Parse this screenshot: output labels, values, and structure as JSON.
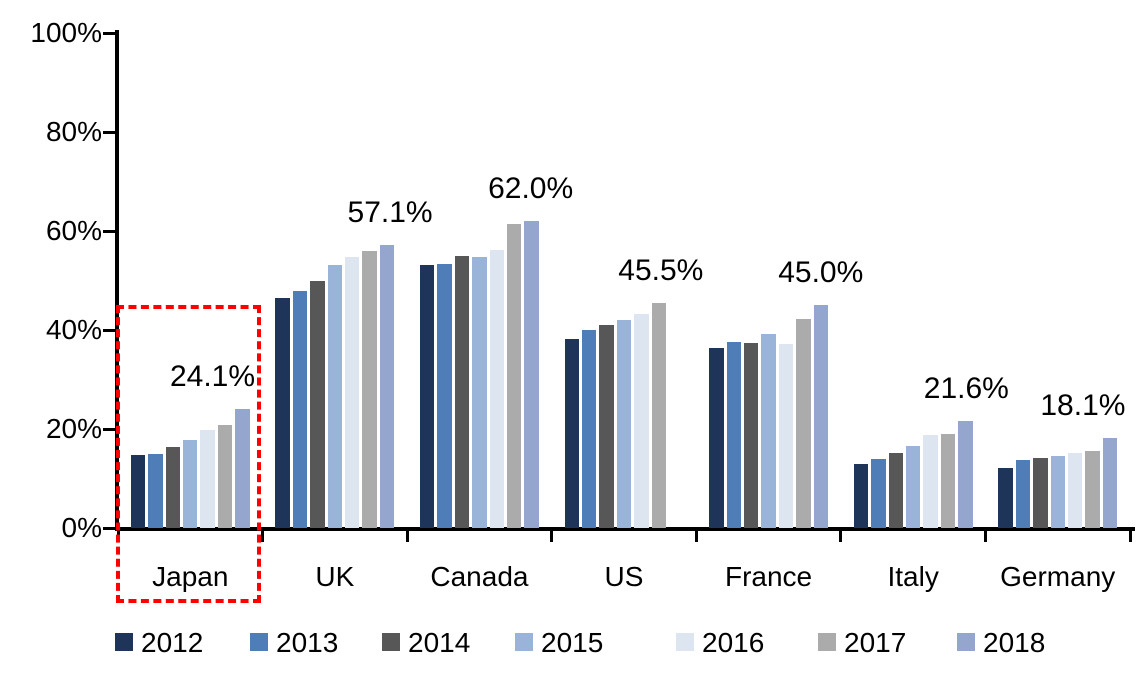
{
  "chart_data": {
    "type": "bar",
    "title": "",
    "xlabel": "",
    "ylabel": "",
    "ylim": [
      0,
      100
    ],
    "grid": false,
    "legend_position": "bottom",
    "categories": [
      "Japan",
      "UK",
      "Canada",
      "US",
      "France",
      "Italy",
      "Germany"
    ],
    "series": [
      {
        "name": "2012",
        "color": "#1e3458",
        "values": [
          14.7,
          46.4,
          53.1,
          38.1,
          36.4,
          13.0,
          12.2
        ]
      },
      {
        "name": "2013",
        "color": "#4e7db8",
        "values": [
          15.0,
          47.8,
          53.4,
          40.0,
          37.5,
          13.9,
          13.7
        ]
      },
      {
        "name": "2014",
        "color": "#575757",
        "values": [
          16.4,
          49.9,
          55.0,
          41.0,
          37.4,
          15.1,
          14.1
        ]
      },
      {
        "name": "2015",
        "color": "#9ab4d9",
        "values": [
          17.8,
          53.2,
          54.8,
          42.0,
          39.1,
          16.6,
          14.5
        ]
      },
      {
        "name": "2016",
        "color": "#dde5f1",
        "values": [
          19.7,
          54.7,
          56.2,
          43.3,
          37.2,
          18.7,
          15.2
        ]
      },
      {
        "name": "2017",
        "color": "#ababab",
        "values": [
          20.9,
          56.0,
          61.5,
          45.5,
          42.3,
          18.9,
          15.6
        ]
      },
      {
        "name": "2018",
        "color": "#95a6ce",
        "values": [
          24.1,
          57.1,
          62.0,
          null,
          45.0,
          21.6,
          18.1
        ]
      }
    ],
    "value_labels": [
      "24.1%",
      "57.1%",
      "62.0%",
      "45.5%",
      "45.0%",
      "21.6%",
      "18.1%"
    ],
    "value_label_note": "label sits above the last available (most recent) bar of each country",
    "yticks": [
      "0%",
      "20%",
      "40%",
      "60%",
      "80%",
      "100%"
    ],
    "highlight": {
      "category": "Japan",
      "color": "#fe0000",
      "style": "dashed-box"
    },
    "layout_hints": {
      "label_dx": [
        -30,
        3,
        -1,
        2,
        0,
        1,
        -27
      ],
      "axis_color": "#000000"
    }
  }
}
